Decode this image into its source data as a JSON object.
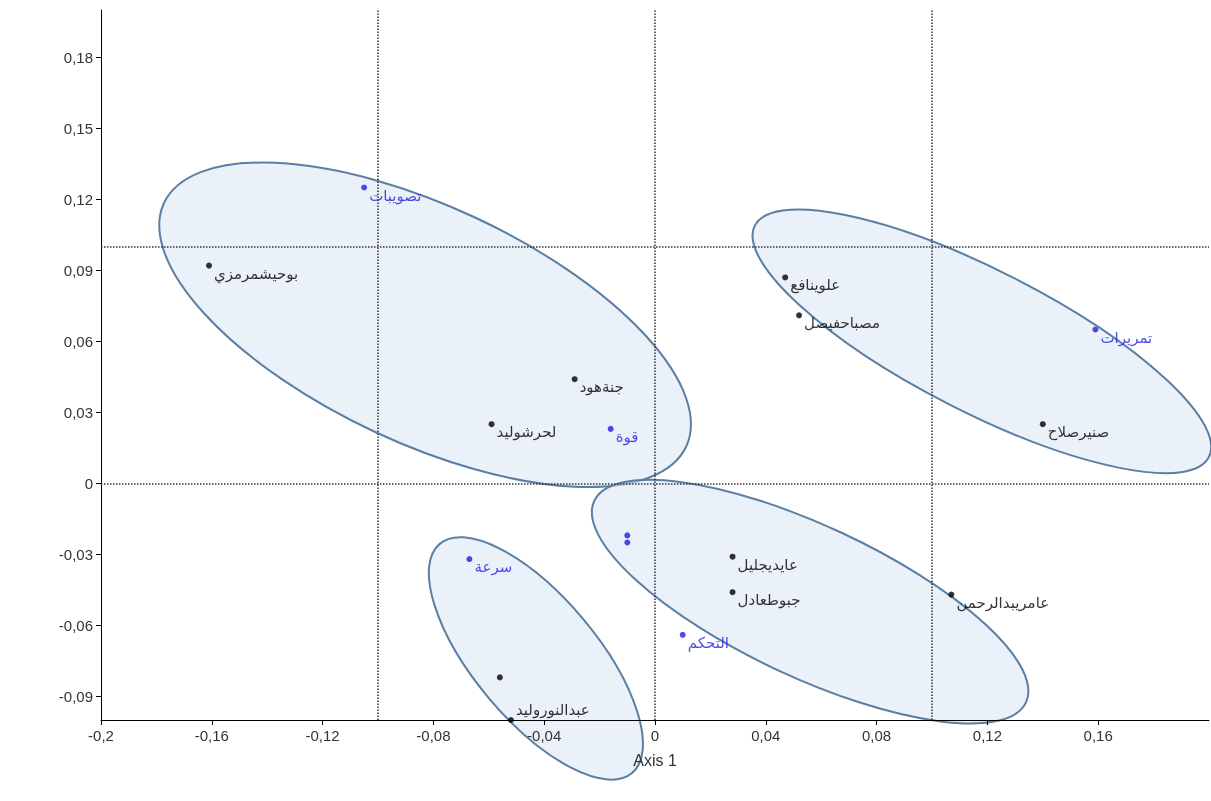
{
  "chart_data": {
    "type": "scatter",
    "xlabel": "Axis 1",
    "marker": "circle",
    "grid": false,
    "xlim": [
      -0.2,
      0.2
    ],
    "ylim": [
      -0.1,
      0.2
    ],
    "xticks": [
      {
        "value": -0.2,
        "label": "-0,2"
      },
      {
        "value": -0.16,
        "label": "-0,16"
      },
      {
        "value": -0.12,
        "label": "-0,12"
      },
      {
        "value": -0.08,
        "label": "-0,08"
      },
      {
        "value": -0.04,
        "label": "-0,04"
      },
      0,
      {
        "value": 0.04,
        "label": "0,04"
      },
      {
        "value": 0.08,
        "label": "0,08"
      },
      {
        "value": 0.12,
        "label": "0,12"
      },
      {
        "value": 0.16,
        "label": "0,16"
      }
    ],
    "yticks": [
      {
        "value": -0.09,
        "label": "-0,09"
      },
      {
        "value": -0.06,
        "label": "-0,06"
      },
      {
        "value": -0.03,
        "label": "-0,03"
      },
      0,
      {
        "value": 0.03,
        "label": "0,03"
      },
      {
        "value": 0.06,
        "label": "0,06"
      },
      {
        "value": 0.09,
        "label": "0,09"
      },
      {
        "value": 0.12,
        "label": "0,12"
      },
      {
        "value": 0.15,
        "label": "0,15"
      },
      {
        "value": 0.18,
        "label": "0,18"
      }
    ],
    "series": [
      {
        "color": "#000000",
        "x": [
          -0.161,
          -0.029,
          -0.059,
          0.047,
          0.052,
          0.14,
          0.028,
          0.028,
          0.107,
          -0.056,
          -0.052
        ],
        "values": [
          0.092,
          0.044,
          0.025,
          0.087,
          0.071,
          0.025,
          -0.031,
          -0.046,
          -0.047,
          -0.082,
          -0.1
        ]
      },
      {
        "color": "#1f1fe0",
        "x": [
          -0.105,
          -0.016,
          0.159,
          -0.067,
          -0.01,
          -0.01,
          0.01
        ],
        "values": [
          0.125,
          0.023,
          0.065,
          -0.032,
          -0.022,
          -0.025,
          -0.064
        ]
      }
    ],
    "ref_lines": [
      {
        "axis": "x",
        "value": -0.1,
        "line_style": "dotted",
        "color": "#333333"
      },
      {
        "axis": "x",
        "value": 0,
        "line_style": "dotted",
        "color": "#333333"
      },
      {
        "axis": "x",
        "value": 0.1,
        "line_style": "dotted",
        "color": "#333333"
      },
      {
        "axis": "y",
        "value": 0,
        "line_style": "dotted",
        "color": "#333333"
      },
      {
        "axis": "y",
        "value": 0.1,
        "line_style": "dotted",
        "color": "#333333"
      }
    ],
    "annotations": [
      {
        "text": "بوحيشمرمزي",
        "x": -0.161,
        "y": 0.092
      },
      {
        "text": "جنةهود",
        "x": -0.029,
        "y": 0.044
      },
      {
        "text": "لحرشوليد",
        "x": -0.059,
        "y": 0.025
      },
      {
        "text": "علوينافع",
        "x": 0.047,
        "y": 0.087
      },
      {
        "text": "مصباحفيصل",
        "x": 0.052,
        "y": 0.071
      },
      {
        "text": "صنيرصلاح",
        "x": 0.14,
        "y": 0.025
      },
      {
        "text": "عايديجليل",
        "x": 0.028,
        "y": -0.031
      },
      {
        "text": "جبوطعادل",
        "x": 0.028,
        "y": -0.046
      },
      {
        "text": "عامريبدالرحمن",
        "x": 0.107,
        "y": -0.047
      },
      {
        "text": "عبدالنوروليد",
        "x": -0.052,
        "y": -0.1
      },
      {
        "text": "تصويبات",
        "x": -0.105,
        "y": 0.125
      },
      {
        "text": "قوة",
        "x": -0.016,
        "y": 0.023
      },
      {
        "text": "تمريرات",
        "x": 0.159,
        "y": 0.065
      },
      {
        "text": "سرعة",
        "x": -0.067,
        "y": -0.032
      },
      {
        "text": "التحكم",
        "x": 0.01,
        "y": -0.064
      }
    ]
  }
}
